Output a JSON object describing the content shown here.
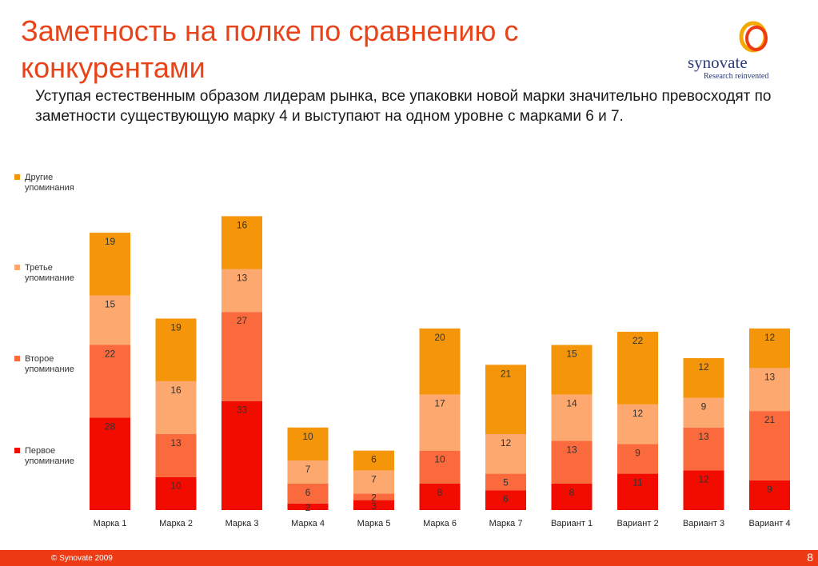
{
  "slide": {
    "title": "Заметность на полке по сравнению с конкурентами",
    "subtitle": "Уступая естественным образом лидерам рынка, все упаковки новой марки   значительно превосходят по заметности существующую марку 4 и выступают на одном уровне с марками 6 и 7."
  },
  "logo": {
    "name": "synovate",
    "tagline": "Research reinvented"
  },
  "footer": {
    "copyright": "© Synovate 2009",
    "page_number": "8"
  },
  "chart_data": {
    "type": "bar",
    "stacked": true,
    "categories": [
      "Марка 1",
      "Марка 2",
      "Марка 3",
      "Марка 4",
      "Марка 5",
      "Марка 6",
      "Марка 7",
      "Вариант 1",
      "Вариант 2",
      "Вариант 3",
      "Вариант 4"
    ],
    "series": [
      {
        "name": "Первое упоминание",
        "color": "#f20c00",
        "values": [
          28,
          10,
          33,
          2,
          3,
          8,
          6,
          8,
          11,
          12,
          9
        ]
      },
      {
        "name": "Второе упоминание",
        "color": "#fa6a3c",
        "values": [
          22,
          13,
          27,
          6,
          2,
          10,
          5,
          13,
          9,
          13,
          21
        ]
      },
      {
        "name": "Третье упоминание",
        "color": "#fca86e",
        "values": [
          15,
          16,
          13,
          7,
          7,
          17,
          12,
          14,
          12,
          9,
          13
        ]
      },
      {
        "name": "Другие упоминания",
        "color": "#f5960a",
        "values": [
          19,
          19,
          16,
          10,
          6,
          20,
          21,
          15,
          22,
          12,
          12
        ]
      }
    ],
    "legend_position": "left",
    "grid": false,
    "ylim": [
      0,
      90
    ]
  }
}
